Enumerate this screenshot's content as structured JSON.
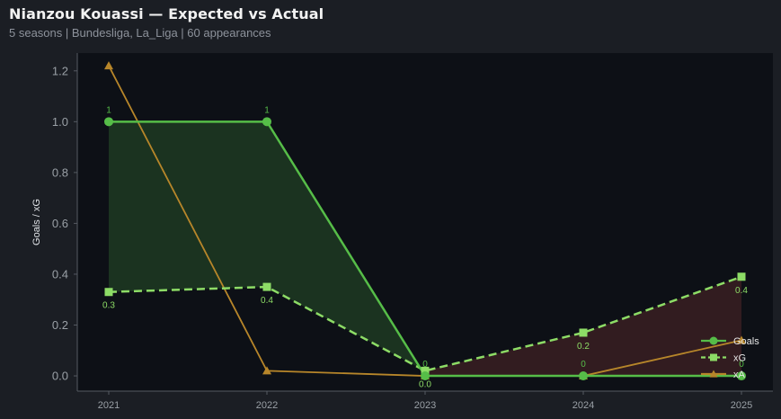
{
  "header": {
    "title": "Nianzou Kouassi — Expected vs Actual",
    "subtitle": "5 seasons | Bundesliga, La_Liga | 60 appearances"
  },
  "colors": {
    "page_bg": "#1b1e24",
    "plot_bg": "#0d1016",
    "goals": "#56bd48",
    "xg": "#8ddc66",
    "xa": "#b7862a",
    "over_fill": "#1f3a22",
    "under_fill": "#3a1f22",
    "text_muted": "#9aa0a6",
    "axis": "#555a62"
  },
  "chart_data": {
    "type": "line",
    "categories": [
      "2021",
      "2022",
      "2023",
      "2024",
      "2025"
    ],
    "ylabel": "Goals / xG",
    "xlabel": "",
    "ylim": [
      -0.06,
      1.27
    ],
    "yticks": [
      "0.0",
      "0.2",
      "0.4",
      "0.6",
      "0.8",
      "1.0",
      "1.2"
    ],
    "grid": false,
    "legend_position": "bottom-right",
    "series": [
      {
        "name": "Goals",
        "values": [
          1,
          1,
          0,
          0,
          0
        ],
        "labels": [
          "1",
          "1",
          "0",
          "0",
          "0"
        ],
        "marker": "circle",
        "style": "solid"
      },
      {
        "name": "xG",
        "values": [
          0.33,
          0.35,
          0.02,
          0.17,
          0.39
        ],
        "labels": [
          "0.3",
          "0.4",
          "0.0",
          "0.2",
          "0.4"
        ],
        "marker": "square",
        "style": "dashed"
      },
      {
        "name": "xA",
        "values": [
          1.22,
          0.02,
          0.0,
          0.0,
          0.14
        ],
        "marker": "triangle",
        "style": "solid"
      }
    ]
  }
}
